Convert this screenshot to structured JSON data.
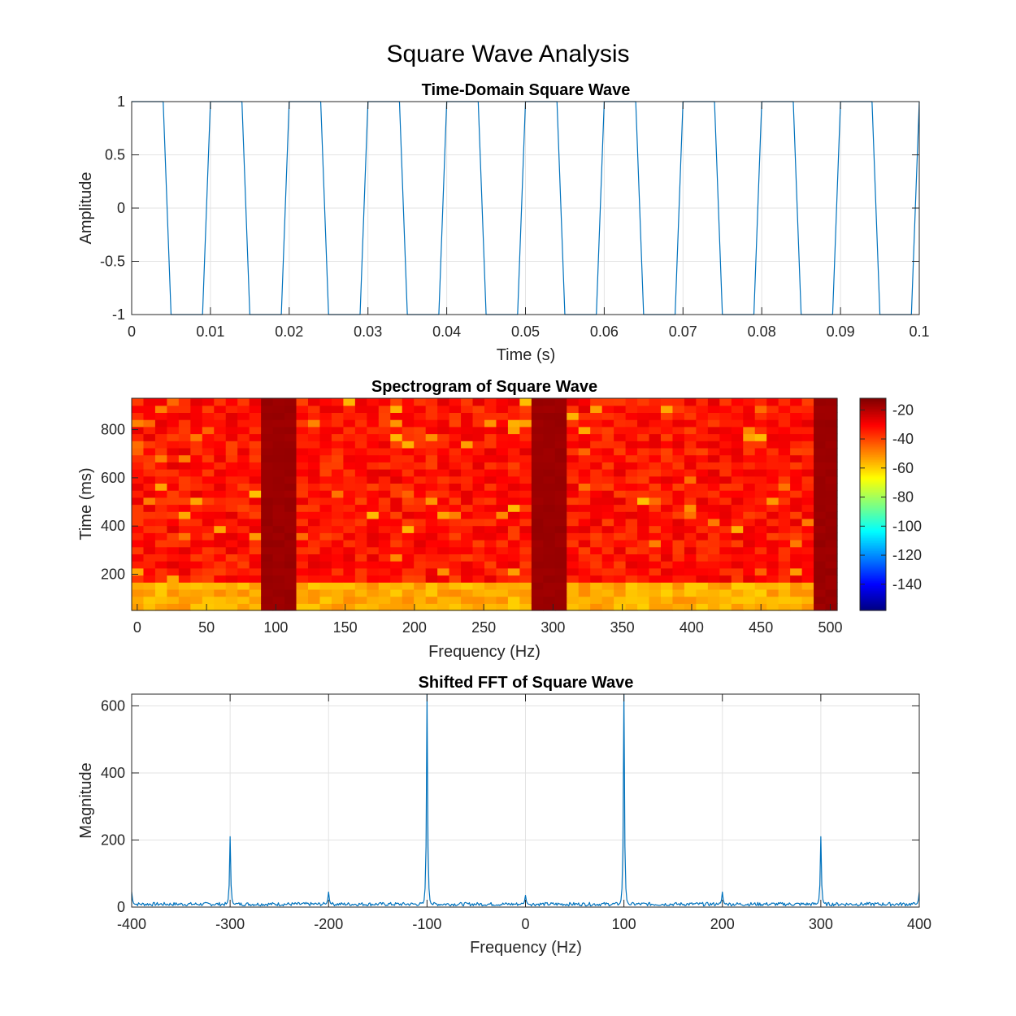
{
  "figure": {
    "title": "Square Wave Analysis"
  },
  "colors": {
    "line": "#0072BD",
    "grid": "#e3e3e3",
    "axis": "#262626"
  },
  "chart_data": [
    {
      "type": "line",
      "title": "Time-Domain Square Wave",
      "xlabel": "Time (s)",
      "ylabel": "Amplitude",
      "xlim": [
        0,
        0.1
      ],
      "ylim": [
        -1,
        1
      ],
      "grid": true,
      "x_ticks": [
        0,
        0.01,
        0.02,
        0.03,
        0.04,
        0.05,
        0.06,
        0.07,
        0.08,
        0.09,
        0.1
      ],
      "x_tick_labels": [
        "0",
        "0.01",
        "0.02",
        "0.03",
        "0.04",
        "0.05",
        "0.06",
        "0.07",
        "0.08",
        "0.09",
        "0.1"
      ],
      "y_ticks": [
        1,
        0.5,
        0,
        -0.5,
        -1
      ],
      "y_tick_labels": [
        "1",
        "0.5",
        "0",
        "-0.5",
        "-1"
      ],
      "frequency_hz": 100,
      "sample_period_s": 0.001,
      "series": [
        {
          "x": [
            0,
            0.004,
            0.005,
            0.009,
            0.01,
            0.014,
            0.015,
            0.019,
            0.02,
            0.024,
            0.025,
            0.029,
            0.03,
            0.034,
            0.035,
            0.039,
            0.04,
            0.044,
            0.045,
            0.049,
            0.05,
            0.054,
            0.055,
            0.059,
            0.06,
            0.064,
            0.065,
            0.069,
            0.07,
            0.074,
            0.075,
            0.079,
            0.08,
            0.084,
            0.085,
            0.089,
            0.09,
            0.094,
            0.095,
            0.099,
            0.1
          ],
          "y": [
            1,
            1,
            -1,
            -1,
            1,
            1,
            -1,
            -1,
            1,
            1,
            -1,
            -1,
            1,
            1,
            -1,
            -1,
            1,
            1,
            -1,
            -1,
            1,
            1,
            -1,
            -1,
            1,
            1,
            -1,
            -1,
            1,
            1,
            -1,
            -1,
            1,
            1,
            -1,
            -1,
            1,
            1,
            -1,
            -1,
            1
          ]
        }
      ]
    },
    {
      "type": "heatmap",
      "title": "Spectrogram of Square Wave",
      "xlabel": "Frequency (Hz)",
      "ylabel": "Time (ms)",
      "xlim": [
        -4,
        505
      ],
      "ylim": [
        50,
        930
      ],
      "x_ticks": [
        0,
        50,
        100,
        150,
        200,
        250,
        300,
        350,
        400,
        450,
        500
      ],
      "x_tick_labels": [
        "0",
        "50",
        "100",
        "150",
        "200",
        "250",
        "300",
        "350",
        "400",
        "450",
        "500"
      ],
      "y_ticks": [
        200,
        400,
        600,
        800
      ],
      "y_tick_labels": [
        "200",
        "400",
        "600",
        "800"
      ],
      "colormap": "jet",
      "clim": [
        -158,
        -12
      ],
      "colorbar_ticks": [
        -20,
        -40,
        -60,
        -80,
        -100,
        -120,
        -140
      ],
      "colorbar_tick_labels": [
        "-20",
        "-40",
        "-60",
        "-80",
        "-100",
        "-120",
        "-140"
      ],
      "freq_bins": 60,
      "time_bins": 30,
      "dominant_bands_hz": [
        100,
        300,
        500
      ],
      "band_level_db": -17,
      "background_level_db": -33,
      "low_time_level_db": -55
    },
    {
      "type": "line",
      "title": "Shifted FFT of Square Wave",
      "xlabel": "Frequency (Hz)",
      "ylabel": "Magnitude",
      "xlim": [
        -400,
        400
      ],
      "ylim": [
        0,
        635
      ],
      "grid": true,
      "x_ticks": [
        -400,
        -300,
        -200,
        -100,
        0,
        100,
        200,
        300,
        400
      ],
      "x_tick_labels": [
        "-400",
        "-300",
        "-200",
        "-100",
        "0",
        "100",
        "200",
        "300",
        "400"
      ],
      "y_ticks": [
        0,
        200,
        400,
        600
      ],
      "y_tick_labels": [
        "0",
        "200",
        "400",
        "600"
      ],
      "peaks": [
        {
          "x": -400,
          "y": 45
        },
        {
          "x": -300,
          "y": 210
        },
        {
          "x": -200,
          "y": 45
        },
        {
          "x": -100,
          "y": 635
        },
        {
          "x": 0,
          "y": 35
        },
        {
          "x": 100,
          "y": 635
        },
        {
          "x": 200,
          "y": 45
        },
        {
          "x": 300,
          "y": 210
        },
        {
          "x": 400,
          "y": 45
        }
      ],
      "noise_floor": 10
    }
  ]
}
